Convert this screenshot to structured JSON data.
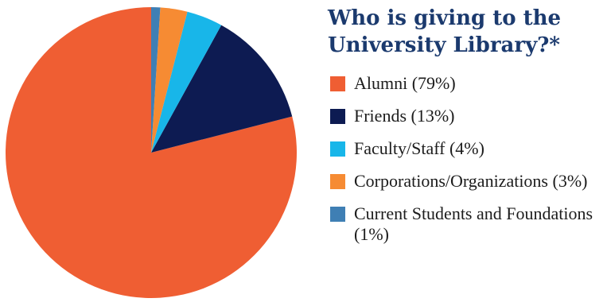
{
  "chart_data": {
    "type": "pie",
    "title": "Who is giving to the University Library?*",
    "slices": [
      {
        "label": "Alumni (79%)",
        "value": 79,
        "color": "#ef5e33"
      },
      {
        "label": "Friends (13%)",
        "value": 13,
        "color": "#0d1b52"
      },
      {
        "label": "Faculty/Staff (4%)",
        "value": 4,
        "color": "#18b6e9"
      },
      {
        "label": "Corporations/Organizations (3%)",
        "value": 3,
        "color": "#f68b33"
      },
      {
        "label": "Current Students and Foundations (1%)",
        "value": 1,
        "color": "#3f7fb4"
      }
    ],
    "legend_position": "right"
  }
}
